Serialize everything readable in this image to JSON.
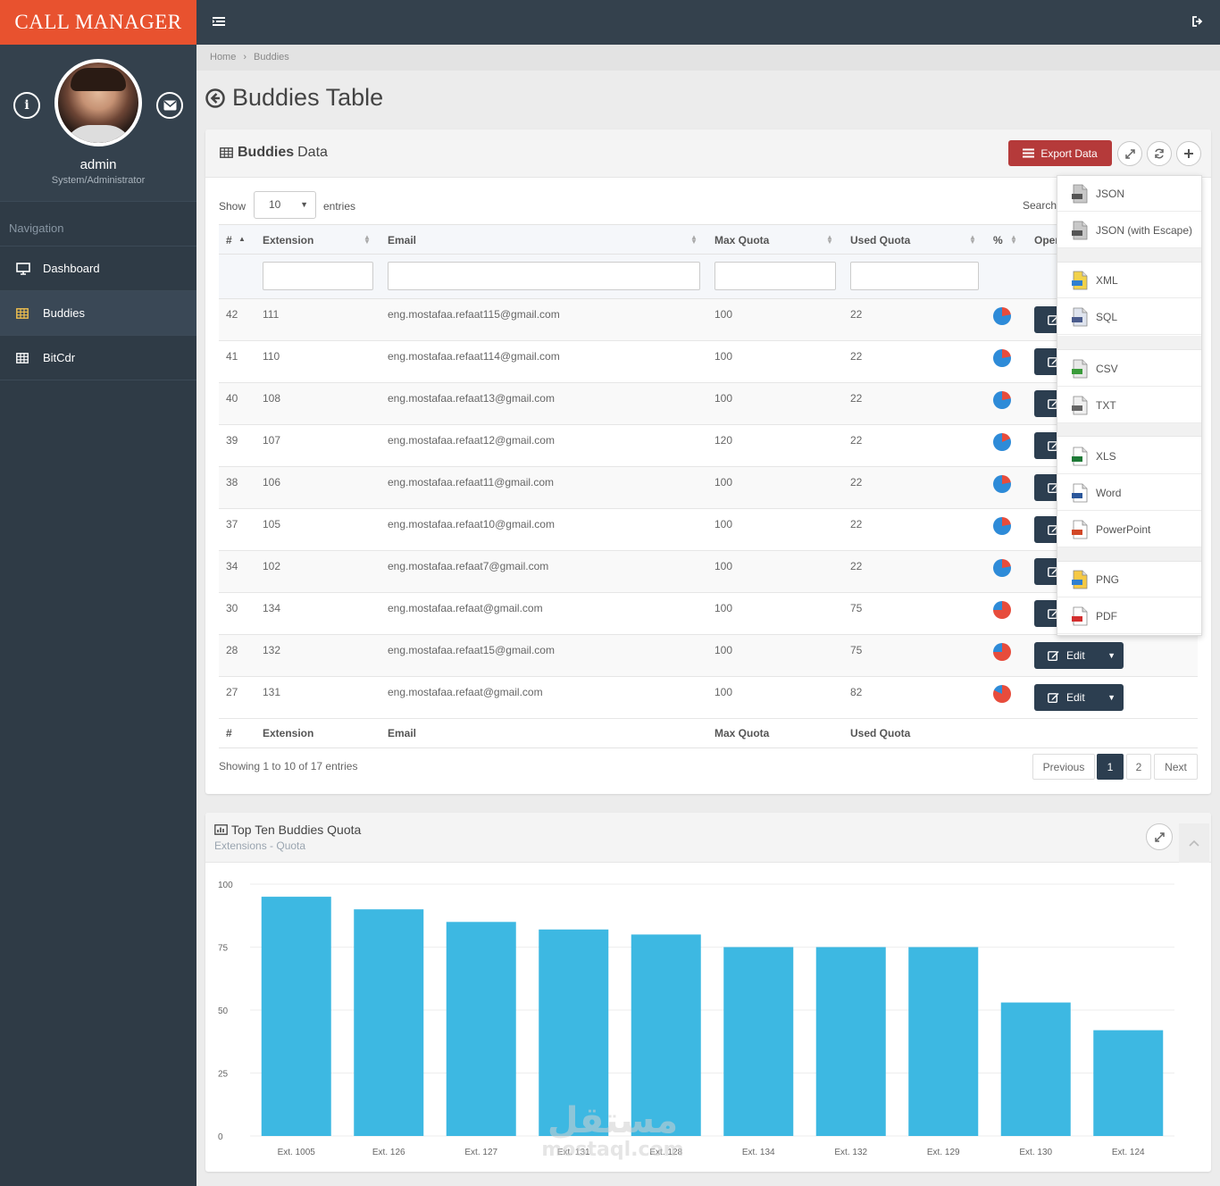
{
  "brand": "CALL MANAGER",
  "user": {
    "name": "admin",
    "role": "System/Administrator"
  },
  "nav": {
    "header": "Navigation",
    "items": [
      {
        "label": "Dashboard",
        "icon": "monitor-icon"
      },
      {
        "label": "Buddies",
        "icon": "table-icon"
      },
      {
        "label": "BitCdr",
        "icon": "table-icon"
      }
    ]
  },
  "breadcrumb": {
    "home": "Home",
    "current": "Buddies"
  },
  "page_title": "Buddies Table",
  "table_panel": {
    "title_bold": "Buddies",
    "title_rest": "Data",
    "export_label": "Export Data",
    "show_label": "Show",
    "page_length": "10",
    "entries_label": "entries",
    "search_label": "Search:",
    "columns": [
      "#",
      "Extension",
      "Email",
      "Max Quota",
      "Used Quota",
      "%",
      "Operations"
    ],
    "footer_columns": [
      "#",
      "Extension",
      "Email",
      "Max Quota",
      "Used Quota"
    ],
    "rows": [
      {
        "id": "42",
        "ext": "111",
        "email": "eng.mostafaa.refaat115@gmail.com",
        "max": "100",
        "used": "22"
      },
      {
        "id": "41",
        "ext": "110",
        "email": "eng.mostafaa.refaat114@gmail.com",
        "max": "100",
        "used": "22"
      },
      {
        "id": "40",
        "ext": "108",
        "email": "eng.mostafaa.refaat13@gmail.com",
        "max": "100",
        "used": "22"
      },
      {
        "id": "39",
        "ext": "107",
        "email": "eng.mostafaa.refaat12@gmail.com",
        "max": "120",
        "used": "22"
      },
      {
        "id": "38",
        "ext": "106",
        "email": "eng.mostafaa.refaat11@gmail.com",
        "max": "100",
        "used": "22"
      },
      {
        "id": "37",
        "ext": "105",
        "email": "eng.mostafaa.refaat10@gmail.com",
        "max": "100",
        "used": "22"
      },
      {
        "id": "34",
        "ext": "102",
        "email": "eng.mostafaa.refaat7@gmail.com",
        "max": "100",
        "used": "22"
      },
      {
        "id": "30",
        "ext": "134",
        "email": "eng.mostafaa.refaat@gmail.com",
        "max": "100",
        "used": "75"
      },
      {
        "id": "28",
        "ext": "132",
        "email": "eng.mostafaa.refaat15@gmail.com",
        "max": "100",
        "used": "75"
      },
      {
        "id": "27",
        "ext": "131",
        "email": "eng.mostafaa.refaat@gmail.com",
        "max": "100",
        "used": "82"
      }
    ],
    "edit_label": "Edit",
    "info": "Showing 1 to 10 of 17 entries",
    "pagination": {
      "previous": "Previous",
      "pages": [
        "1",
        "2"
      ],
      "current": "1",
      "next": "Next"
    }
  },
  "export_menu": [
    {
      "label": "JSON",
      "icon": "json-file-icon"
    },
    {
      "label": "JSON (with Escape)",
      "icon": "json-file-icon"
    },
    {
      "label": "XML",
      "icon": "xml-file-icon"
    },
    {
      "label": "SQL",
      "icon": "sql-file-icon"
    },
    {
      "label": "CSV",
      "icon": "csv-file-icon"
    },
    {
      "label": "TXT",
      "icon": "txt-file-icon"
    },
    {
      "label": "XLS",
      "icon": "excel-file-icon"
    },
    {
      "label": "Word",
      "icon": "word-file-icon"
    },
    {
      "label": "PowerPoint",
      "icon": "powerpoint-file-icon"
    },
    {
      "label": "PNG",
      "icon": "png-file-icon"
    },
    {
      "label": "PDF",
      "icon": "pdf-file-icon"
    }
  ],
  "chart_panel": {
    "title": "Top Ten Buddies Quota",
    "subtitle": "Extensions - Quota"
  },
  "chart_data": {
    "type": "bar",
    "categories": [
      "Ext. 1005",
      "Ext. 126",
      "Ext. 127",
      "Ext. 131",
      "Ext. 128",
      "Ext. 134",
      "Ext. 132",
      "Ext. 129",
      "Ext. 130",
      "Ext. 124"
    ],
    "values": [
      95,
      90,
      85,
      82,
      80,
      75,
      75,
      75,
      53,
      42
    ],
    "ylim": [
      0,
      100
    ],
    "yticks": [
      0,
      25,
      50,
      75,
      100
    ],
    "grid": true,
    "bar_color": "#3db8e2"
  },
  "watermark": {
    "arabic": "مستقل",
    "latin": "mostaql.com"
  },
  "colors": {
    "brand": "#e8522f",
    "sidebar": "#2f3b46",
    "export": "#b53a3a",
    "button_dark": "#2c3e50",
    "pie_used": "#e74c3c",
    "pie_free": "#2e8bd8"
  }
}
